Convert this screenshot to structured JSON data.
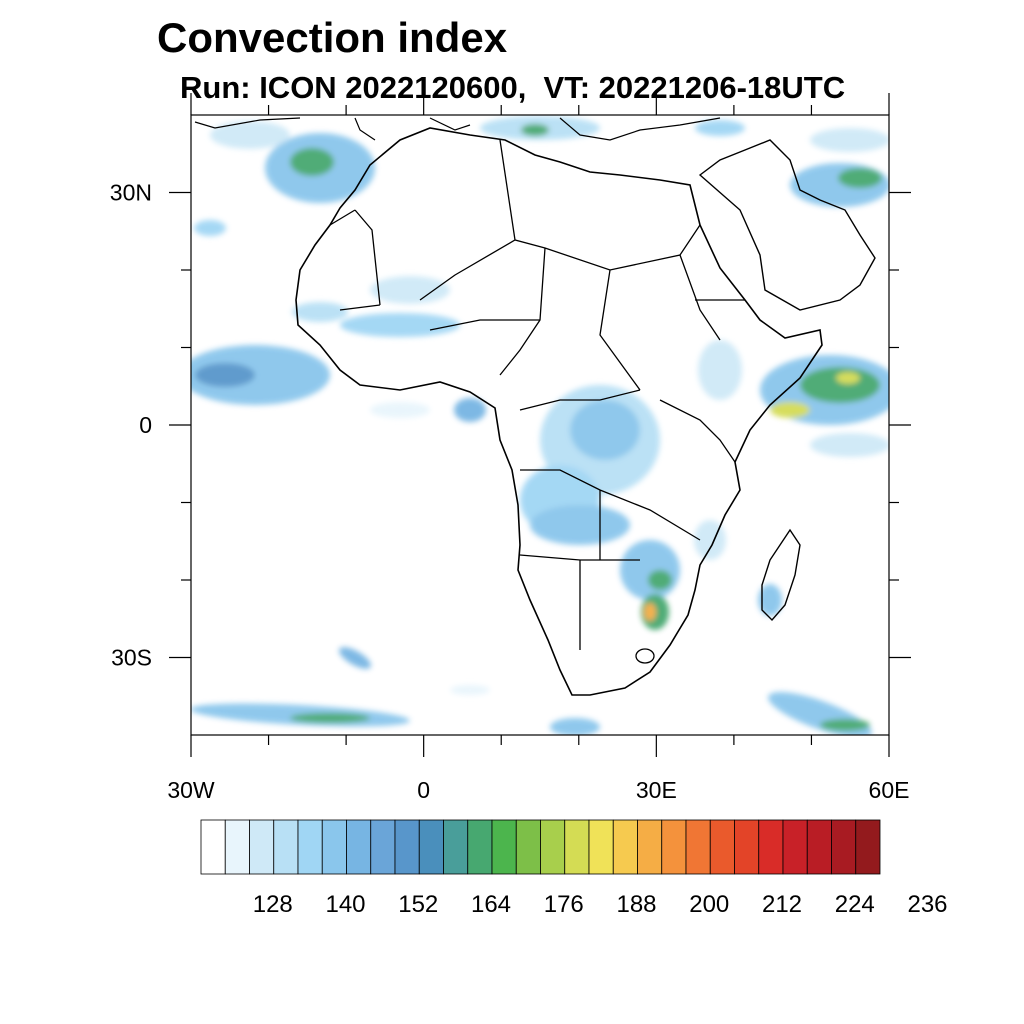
{
  "title": "Convection index",
  "subtitle": "Run: ICON 2022120600,  VT: 20221206-18UTC",
  "map": {
    "region": "Africa",
    "lon_range": [
      -30,
      60
    ],
    "lat_range": [
      -40,
      40
    ],
    "lon_labels": [
      "30W",
      "0",
      "30E",
      "60E"
    ],
    "lat_labels": [
      "30N",
      "0",
      "30S"
    ]
  },
  "colorbar": {
    "labels": [
      "128",
      "140",
      "152",
      "164",
      "176",
      "188",
      "200",
      "212",
      "224",
      "236"
    ],
    "colors": [
      "#ffffff",
      "#e8f5fc",
      "#cfe9f7",
      "#b8e0f5",
      "#a0d6f4",
      "#8ac6ec",
      "#77b5e3",
      "#6aa5d8",
      "#5896cb",
      "#4a8fbc",
      "#499e9a",
      "#47a870",
      "#4cb54d",
      "#7dbf48",
      "#a8cf4c",
      "#d4dc54",
      "#f0e258",
      "#f6ca4f",
      "#f5ad45",
      "#f4923c",
      "#f07634",
      "#ea5a2c",
      "#e34428",
      "#d92c28",
      "#c82128",
      "#b91d25",
      "#a81b22",
      "#931a1d"
    ]
  },
  "fields": {
    "land": "#ffffff",
    "borders": "#000000",
    "light": "#cfe9f7",
    "mid": "#8ac6ec",
    "strong": "#5896cb",
    "green": "#47a870",
    "yellow": "#d4dc54"
  }
}
